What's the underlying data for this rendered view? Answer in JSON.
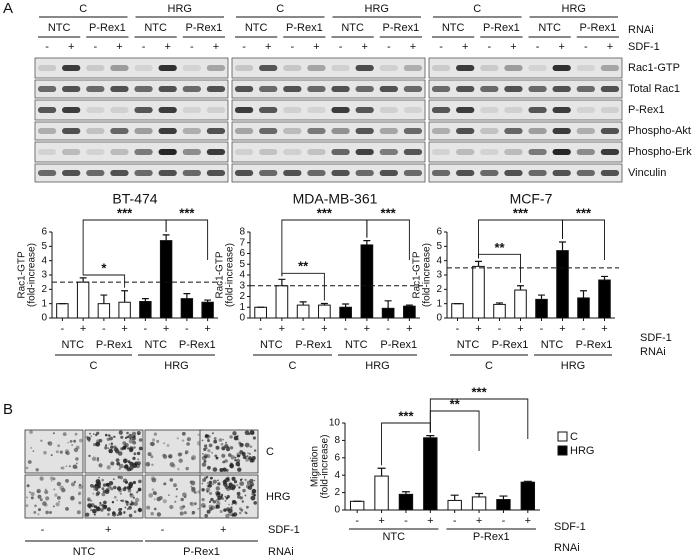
{
  "panel_a": {
    "label": "A",
    "groups": [
      "C",
      "HRG"
    ],
    "rnai": [
      "NTC",
      "P-Rex1"
    ],
    "sdf": [
      "-",
      "+"
    ],
    "rnai_label": "RNAi",
    "sdf_label": "SDF-1",
    "blot_rows": [
      "Rac1-GTP",
      "Total Rac1",
      "P-Rex1",
      "Phospho-Akt",
      "Phospho-Erk",
      "Vinculin"
    ]
  },
  "chart_data": [
    {
      "type": "bar",
      "title": "BT-474",
      "y_label": [
        "Rac1-GTP",
        "(fold-increase)"
      ],
      "categories": [
        "-",
        "+",
        "-",
        "+",
        "-",
        "+",
        "-",
        "+"
      ],
      "rnai": [
        "NTC",
        "P-Rex1",
        "NTC",
        "P-Rex1"
      ],
      "groups": [
        "C",
        "HRG"
      ],
      "values": [
        1,
        2.5,
        1.0,
        1.1,
        1.15,
        5.4,
        1.35,
        1.1
      ],
      "errors": [
        0,
        0.3,
        0.6,
        0.8,
        0.2,
        0.4,
        0.35,
        0.15
      ],
      "colors": [
        "#ffffff",
        "#ffffff",
        "#ffffff",
        "#ffffff",
        "#000000",
        "#000000",
        "#000000",
        "#000000"
      ],
      "ylim": [
        0,
        6
      ],
      "yticks": [
        0,
        1,
        2,
        3,
        4,
        5,
        6
      ],
      "reference_line": 2.5,
      "significance": [
        "***",
        "*",
        "***"
      ]
    },
    {
      "type": "bar",
      "title": "MDA-MB-361",
      "y_label": [
        "Rac1-GTP",
        "(fold-increase)"
      ],
      "categories": [
        "-",
        "+",
        "-",
        "+",
        "-",
        "+",
        "-",
        "+"
      ],
      "rnai": [
        "NTC",
        "P-Rex1",
        "NTC",
        "P-Rex1"
      ],
      "groups": [
        "C",
        "HRG"
      ],
      "values": [
        1,
        3.0,
        1.2,
        1.2,
        1.0,
        6.8,
        0.9,
        1.1
      ],
      "errors": [
        0,
        0.6,
        0.3,
        0.15,
        0.3,
        0.4,
        0.7,
        0.1
      ],
      "colors": [
        "#ffffff",
        "#ffffff",
        "#ffffff",
        "#ffffff",
        "#000000",
        "#000000",
        "#000000",
        "#000000"
      ],
      "ylim": [
        0,
        8
      ],
      "yticks": [
        0,
        1,
        2,
        3,
        4,
        5,
        6,
        7,
        8
      ],
      "reference_line": 3.0,
      "significance": [
        "***",
        "**",
        "***"
      ]
    },
    {
      "type": "bar",
      "title": "MCF-7",
      "y_label": [
        "Rac1-GTP",
        "(fold-increase)"
      ],
      "categories": [
        "-",
        "+",
        "-",
        "+",
        "-",
        "+",
        "-",
        "+"
      ],
      "rnai": [
        "NTC",
        "P-Rex1",
        "NTC",
        "P-Rex1"
      ],
      "groups": [
        "C",
        "HRG"
      ],
      "values": [
        1,
        3.6,
        0.95,
        1.95,
        1.3,
        4.7,
        1.4,
        2.65
      ],
      "errors": [
        0,
        0.35,
        0.1,
        0.3,
        0.3,
        0.6,
        0.5,
        0.25
      ],
      "colors": [
        "#ffffff",
        "#ffffff",
        "#ffffff",
        "#ffffff",
        "#000000",
        "#000000",
        "#000000",
        "#000000"
      ],
      "ylim": [
        0,
        6
      ],
      "yticks": [
        0,
        1,
        2,
        3,
        4,
        5,
        6
      ],
      "reference_line": 3.5,
      "significance": [
        "***",
        "**",
        "***"
      ]
    },
    {
      "type": "bar",
      "y_label": [
        "Migration",
        "(fold-increase)"
      ],
      "categories": [
        "-",
        "+",
        "-",
        "+",
        "-",
        "+",
        "-",
        "+"
      ],
      "rnai": [
        "NTC",
        "P-Rex1"
      ],
      "series": [
        {
          "name": "C",
          "color": "#ffffff",
          "values": [
            1,
            3.9,
            null,
            null,
            1.1,
            1.5,
            null,
            null
          ],
          "errors": [
            0,
            0.9,
            null,
            null,
            0.6,
            0.4,
            null,
            null
          ]
        },
        {
          "name": "HRG",
          "color": "#000000",
          "values": [
            null,
            null,
            1.8,
            8.3,
            null,
            null,
            1.2,
            3.2
          ],
          "errors": [
            null,
            null,
            0.3,
            0.25,
            null,
            null,
            0.4,
            0.1
          ]
        }
      ],
      "ylim": [
        0,
        10
      ],
      "yticks": [
        0,
        2,
        4,
        6,
        8,
        10
      ],
      "significance": [
        "***",
        "**",
        "***"
      ],
      "legend": "upper right",
      "sdf_label": "SDF-1",
      "rnai_label": "RNAi"
    }
  ],
  "panel_b": {
    "label": "B",
    "conditions": [
      "C",
      "HRG"
    ],
    "sdf": [
      "-",
      "+",
      "-",
      "+"
    ],
    "rnai": [
      "NTC",
      "P-Rex1"
    ],
    "sdf_label": "SDF-1",
    "rnai_label": "RNAi"
  }
}
